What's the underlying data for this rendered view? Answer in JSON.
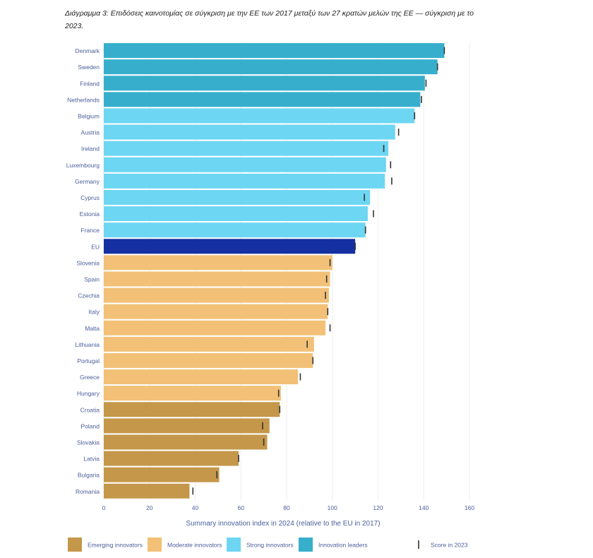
{
  "caption": "Διάγραμμα 3: Επιδόσεις καινοτομίας σε σύγκριση με την ΕΕ των 2017 μεταξύ των 27 κρατών μελών της ΕΕ — σύγκριση με το 2023.",
  "chart_data": {
    "type": "bar",
    "orientation": "horizontal",
    "title": "",
    "xlabel": "Summary innovation index in 2024 (relative to the EU in 2017)",
    "ylabel": "",
    "xlim": [
      0,
      160
    ],
    "xticks": [
      0,
      20,
      40,
      60,
      80,
      100,
      120,
      140,
      160
    ],
    "grid": true,
    "legend_position": "bottom",
    "colors": {
      "Emerging innovators": "#c4974a",
      "Moderate innovators": "#f2c177",
      "Strong innovators": "#6dd6f2",
      "Innovation leaders": "#37afcc",
      "EU": "#1530a0",
      "marker": "#333333"
    },
    "categories": [
      "Denmark",
      "Sweden",
      "Finland",
      "Netherlands",
      "Belgium",
      "Austria",
      "Ireland",
      "Luxembourg",
      "Germany",
      "Cyprus",
      "Estonia",
      "France",
      "EU",
      "Slovenia",
      "Spain",
      "Czechia",
      "Italy",
      "Malta",
      "Lithuania",
      "Portugal",
      "Greece",
      "Hungary",
      "Croatia",
      "Poland",
      "Slovakia",
      "Latvia",
      "Bulgaria",
      "Romania"
    ],
    "groups": [
      "Innovation leaders",
      "Innovation leaders",
      "Innovation leaders",
      "Innovation leaders",
      "Strong innovators",
      "Strong innovators",
      "Strong innovators",
      "Strong innovators",
      "Strong innovators",
      "Strong innovators",
      "Strong innovators",
      "Strong innovators",
      "EU",
      "Moderate innovators",
      "Moderate innovators",
      "Moderate innovators",
      "Moderate innovators",
      "Moderate innovators",
      "Moderate innovators",
      "Moderate innovators",
      "Moderate innovators",
      "Moderate innovators",
      "Emerging innovators",
      "Emerging innovators",
      "Emerging innovators",
      "Emerging innovators",
      "Emerging innovators",
      "Emerging innovators"
    ],
    "series": [
      {
        "name": "2024",
        "values": [
          149.0,
          146.0,
          140.5,
          138.5,
          136.0,
          127.5,
          124.5,
          123.5,
          123.0,
          116.5,
          115.5,
          114.5,
          110.0,
          100.0,
          99.0,
          98.5,
          98.0,
          97.0,
          92.0,
          91.5,
          85.0,
          77.5,
          77.0,
          72.5,
          71.5,
          59.0,
          50.5,
          37.5
        ]
      },
      {
        "name": "Score in 2023",
        "values": [
          149.0,
          146.0,
          141.0,
          139.0,
          136.0,
          129.0,
          122.5,
          125.5,
          126.0,
          114.0,
          118.0,
          114.5,
          110.0,
          99.0,
          97.5,
          97.0,
          98.0,
          99.0,
          89.0,
          91.5,
          86.0,
          76.5,
          77.0,
          69.5,
          70.0,
          59.0,
          49.5,
          39.0
        ]
      }
    ],
    "legend": [
      {
        "label": "Emerging innovators",
        "color": "#c4974a",
        "kind": "box"
      },
      {
        "label": "Moderate innovators",
        "color": "#f2c177",
        "kind": "box"
      },
      {
        "label": "Strong innovators",
        "color": "#6dd6f2",
        "kind": "box"
      },
      {
        "label": "Innovation leaders",
        "color": "#37afcc",
        "kind": "box"
      },
      {
        "label": "Score in 2023",
        "color": "#333333",
        "kind": "tick"
      }
    ]
  }
}
